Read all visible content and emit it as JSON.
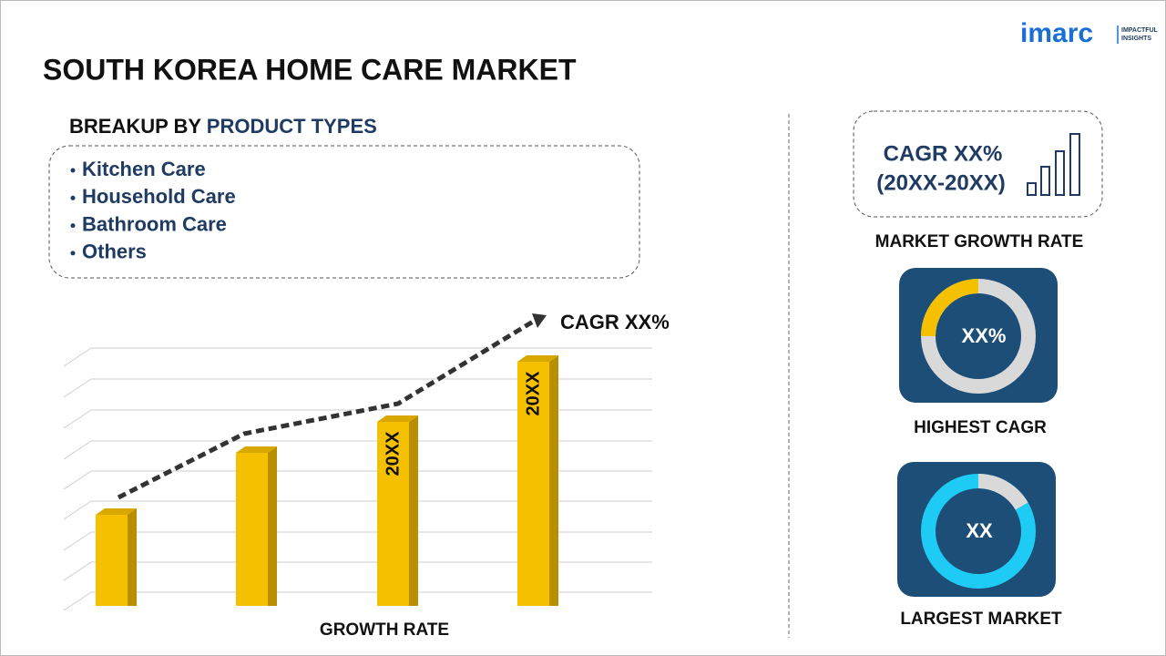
{
  "logo": {
    "name": "imarc",
    "tagline_1": "IMPACTFUL",
    "tagline_2": "INSIGHTS"
  },
  "header": {
    "title": "SOUTH KOREA HOME CARE MARKET"
  },
  "breakup": {
    "heading_prefix": "BREAKUP BY",
    "heading_highlight": "PRODUCT TYPES",
    "items": [
      "Kitchen Care",
      "Household Care",
      "Bathroom Care",
      "Others"
    ]
  },
  "growth_chart": {
    "cagr_label": "CAGR XX%",
    "bar_labels": [
      "20XX",
      "20XX"
    ],
    "axis_label": "GROWTH RATE"
  },
  "side_panel": {
    "growth_box": {
      "line_1": "CAGR XX%",
      "line_2": "(20XX-20XX)",
      "caption": "MARKET GROWTH RATE"
    },
    "highest_cagr": {
      "value": "XX%",
      "caption": "HIGHEST CAGR"
    },
    "largest_market": {
      "value": "XX",
      "caption": "LARGEST MARKET"
    }
  }
}
